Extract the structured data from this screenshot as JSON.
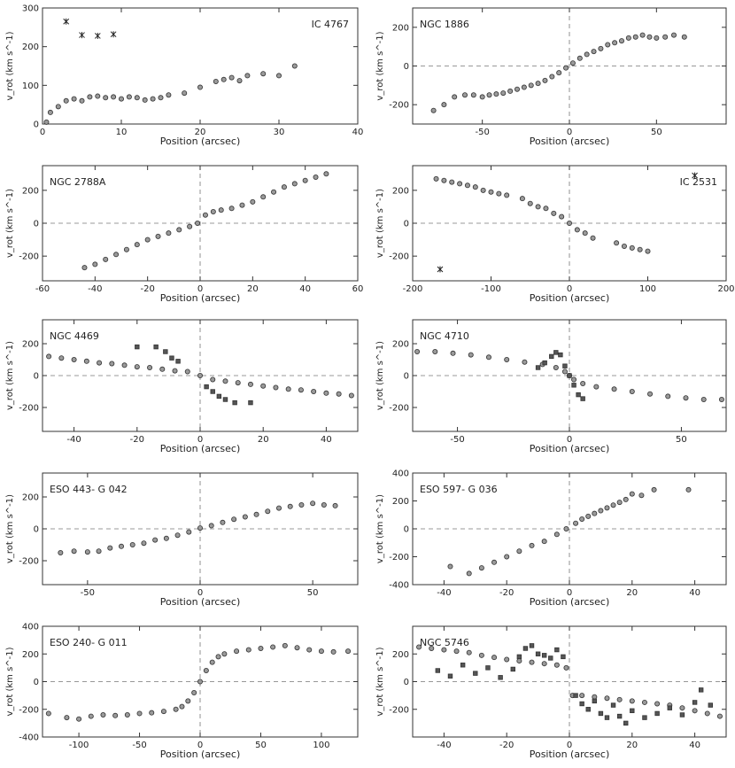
{
  "figure": {
    "colors": {
      "ink": "#222222",
      "frame": "#333333",
      "dash": "#777777",
      "marker_fill": "#9a9a9a"
    }
  },
  "chart_data": [
    {
      "type": "scatter",
      "galaxy": "IC 4767",
      "label_pos": "top-right",
      "xlabel": "Position (arcsec)",
      "ylabel": "v_rot (km s^-1)",
      "xlim": [
        0,
        40
      ],
      "ylim": [
        0,
        300
      ],
      "xticks": [
        0,
        10,
        20,
        30,
        40
      ],
      "yticks": [
        0,
        100,
        200,
        300
      ],
      "zero_lines": false,
      "series": [
        {
          "name": "rotation",
          "x": [
            0.5,
            1,
            2,
            3,
            4,
            5,
            6,
            7,
            8,
            9,
            10,
            11,
            12,
            13,
            14,
            15,
            16,
            18,
            20,
            22,
            23,
            24,
            25,
            26,
            28,
            30,
            32
          ],
          "y": [
            5,
            30,
            45,
            60,
            65,
            60,
            70,
            72,
            68,
            70,
            65,
            70,
            68,
            62,
            65,
            68,
            75,
            80,
            95,
            110,
            115,
            120,
            112,
            125,
            130,
            125,
            150
          ]
        },
        {
          "name": "outliers",
          "x": [
            3,
            5,
            7,
            9
          ],
          "y": [
            265,
            230,
            228,
            232
          ]
        }
      ]
    },
    {
      "type": "scatter",
      "galaxy": "NGC 1886",
      "label_pos": "top-left",
      "xlabel": "Position (arcsec)",
      "ylabel": "v_rot (km s^-1)",
      "xlim": [
        -90,
        90
      ],
      "ylim": [
        -300,
        300
      ],
      "xticks": [
        -50,
        0,
        50
      ],
      "yticks": [
        -200,
        0,
        200
      ],
      "zero_lines": true,
      "series": [
        {
          "name": "rotation",
          "x": [
            -78,
            -72,
            -66,
            -60,
            -55,
            -50,
            -46,
            -42,
            -38,
            -34,
            -30,
            -26,
            -22,
            -18,
            -14,
            -10,
            -6,
            -2,
            2,
            6,
            10,
            14,
            18,
            22,
            26,
            30,
            34,
            38,
            42,
            46,
            50,
            55,
            60,
            66
          ],
          "y": [
            -230,
            -200,
            -160,
            -150,
            -150,
            -160,
            -150,
            -145,
            -140,
            -130,
            -120,
            -110,
            -100,
            -90,
            -75,
            -55,
            -35,
            -10,
            15,
            40,
            60,
            75,
            90,
            110,
            120,
            130,
            145,
            150,
            160,
            150,
            145,
            150,
            160,
            150
          ]
        }
      ]
    },
    {
      "type": "scatter",
      "galaxy": "NGC 2788A",
      "label_pos": "top-left",
      "xlabel": "Position (arcsec)",
      "ylabel": "v_rot (km s^-1)",
      "xlim": [
        -60,
        60
      ],
      "ylim": [
        -350,
        350
      ],
      "xticks": [
        -60,
        -40,
        -20,
        0,
        20,
        40,
        60
      ],
      "yticks": [
        -200,
        0,
        200
      ],
      "zero_lines": true,
      "series": [
        {
          "name": "rotation",
          "x": [
            -44,
            -40,
            -36,
            -32,
            -28,
            -24,
            -20,
            -16,
            -12,
            -8,
            -4,
            -1,
            2,
            5,
            8,
            12,
            16,
            20,
            24,
            28,
            32,
            36,
            40,
            44,
            48
          ],
          "y": [
            -270,
            -250,
            -220,
            -190,
            -160,
            -130,
            -100,
            -80,
            -60,
            -40,
            -20,
            0,
            50,
            70,
            80,
            90,
            110,
            130,
            160,
            190,
            220,
            240,
            260,
            280,
            300
          ]
        }
      ]
    },
    {
      "type": "scatter",
      "galaxy": "IC 2531",
      "label_pos": "top-right",
      "xlabel": "Position (arcsec)",
      "ylabel": "v_rot (km s^-1)",
      "xlim": [
        -200,
        200
      ],
      "ylim": [
        -350,
        350
      ],
      "xticks": [
        -200,
        -100,
        0,
        100,
        200
      ],
      "yticks": [
        -200,
        0,
        200
      ],
      "zero_lines": true,
      "series": [
        {
          "name": "rotation",
          "x": [
            -170,
            -160,
            -150,
            -140,
            -130,
            -120,
            -110,
            -100,
            -90,
            -80,
            -60,
            -50,
            -40,
            -30,
            -20,
            -10,
            0,
            10,
            20,
            30,
            60,
            70,
            80,
            90,
            100
          ],
          "y": [
            270,
            260,
            250,
            240,
            230,
            220,
            200,
            190,
            180,
            170,
            150,
            120,
            100,
            90,
            60,
            40,
            0,
            -40,
            -60,
            -90,
            -120,
            -140,
            -150,
            -160,
            -170
          ]
        },
        {
          "name": "outliers",
          "x": [
            -165,
            160
          ],
          "y": [
            -280,
            290
          ]
        }
      ]
    },
    {
      "type": "scatter",
      "galaxy": "NGC 4469",
      "label_pos": "top-left",
      "xlabel": "Position (arcsec)",
      "ylabel": "v_rot (km s^-1)",
      "xlim": [
        -50,
        50
      ],
      "ylim": [
        -350,
        350
      ],
      "xticks": [
        -40,
        -20,
        0,
        20,
        40
      ],
      "yticks": [
        -200,
        0,
        200
      ],
      "zero_lines": true,
      "series": [
        {
          "name": "disk",
          "x": [
            -48,
            -44,
            -40,
            -36,
            -32,
            -28,
            -24,
            -20,
            -16,
            -12,
            -8,
            -4,
            0,
            4,
            8,
            12,
            16,
            20,
            24,
            28,
            32,
            36,
            40,
            44,
            48
          ],
          "y": [
            120,
            110,
            100,
            90,
            80,
            75,
            65,
            55,
            50,
            40,
            30,
            25,
            0,
            -25,
            -35,
            -45,
            -55,
            -65,
            -75,
            -85,
            -90,
            -100,
            -110,
            -115,
            -125
          ]
        },
        {
          "name": "nuclear",
          "x": [
            -20,
            -14,
            -11,
            -9,
            -7,
            2,
            4,
            6,
            8,
            11,
            16
          ],
          "y": [
            180,
            180,
            150,
            110,
            90,
            -70,
            -100,
            -130,
            -150,
            -170,
            -170
          ]
        }
      ]
    },
    {
      "type": "scatter",
      "galaxy": "NGC 4710",
      "label_pos": "top-left",
      "xlabel": "Position (arcsec)",
      "ylabel": "v_rot (km s^-1)",
      "xlim": [
        -70,
        70
      ],
      "ylim": [
        -350,
        350
      ],
      "xticks": [
        -50,
        0,
        50
      ],
      "yticks": [
        -200,
        0,
        200
      ],
      "zero_lines": true,
      "series": [
        {
          "name": "disk",
          "x": [
            -68,
            -60,
            -52,
            -44,
            -36,
            -28,
            -20,
            -12,
            -6,
            -2,
            0,
            2,
            6,
            12,
            20,
            28,
            36,
            44,
            52,
            60,
            68
          ],
          "y": [
            150,
            150,
            140,
            130,
            115,
            100,
            85,
            70,
            50,
            25,
            0,
            -25,
            -50,
            -70,
            -85,
            -100,
            -115,
            -130,
            -140,
            -150,
            -150
          ]
        },
        {
          "name": "inner",
          "x": [
            -14,
            -11,
            -8,
            -6,
            -4,
            -2,
            0,
            2,
            4,
            6
          ],
          "y": [
            50,
            80,
            120,
            145,
            130,
            60,
            0,
            -60,
            -120,
            -145
          ]
        }
      ]
    },
    {
      "type": "scatter",
      "galaxy": "ESO 443- G 042",
      "label_pos": "top-left",
      "xlabel": "Position (arcsec)",
      "ylabel": "v_rot (km s^-1)",
      "xlim": [
        -70,
        70
      ],
      "ylim": [
        -350,
        350
      ],
      "xticks": [
        -50,
        0,
        50
      ],
      "yticks": [
        -200,
        0,
        200
      ],
      "zero_lines": true,
      "series": [
        {
          "name": "rotation",
          "x": [
            -62,
            -56,
            -50,
            -45,
            -40,
            -35,
            -30,
            -25,
            -20,
            -15,
            -10,
            -5,
            0,
            5,
            10,
            15,
            20,
            25,
            30,
            35,
            40,
            45,
            50,
            55,
            60
          ],
          "y": [
            -150,
            -140,
            -145,
            -140,
            -120,
            -110,
            -100,
            -90,
            -70,
            -60,
            -40,
            -20,
            5,
            20,
            40,
            60,
            75,
            90,
            110,
            130,
            140,
            150,
            160,
            150,
            145
          ]
        }
      ]
    },
    {
      "type": "scatter",
      "galaxy": "ESO 597- G 036",
      "label_pos": "top-left",
      "xlabel": "Position (arcsec)",
      "ylabel": "v_rot (km s^-1)",
      "xlim": [
        -50,
        50
      ],
      "ylim": [
        -400,
        400
      ],
      "xticks": [
        -40,
        -20,
        0,
        20,
        40
      ],
      "yticks": [
        -400,
        -200,
        0,
        200,
        400
      ],
      "zero_lines": true,
      "series": [
        {
          "name": "rotation",
          "x": [
            -38,
            -32,
            -28,
            -24,
            -20,
            -16,
            -12,
            -8,
            -4,
            -1,
            2,
            4,
            6,
            8,
            10,
            12,
            14,
            16,
            18,
            20,
            23,
            27,
            38
          ],
          "y": [
            -270,
            -320,
            -280,
            -240,
            -200,
            -160,
            -120,
            -90,
            -40,
            0,
            40,
            70,
            90,
            110,
            130,
            150,
            170,
            190,
            210,
            250,
            240,
            280,
            280
          ]
        }
      ]
    },
    {
      "type": "scatter",
      "galaxy": "ESO 240- G 011",
      "label_pos": "top-left",
      "xlabel": "Position (arcsec)",
      "ylabel": "v_rot (km s^-1)",
      "xlim": [
        -130,
        130
      ],
      "ylim": [
        -400,
        400
      ],
      "xticks": [
        -100,
        -50,
        0,
        50,
        100
      ],
      "yticks": [
        -400,
        -200,
        0,
        200,
        400
      ],
      "zero_lines": true,
      "series": [
        {
          "name": "rotation",
          "x": [
            -125,
            -110,
            -100,
            -90,
            -80,
            -70,
            -60,
            -50,
            -40,
            -30,
            -20,
            -15,
            -10,
            -5,
            0,
            5,
            10,
            15,
            20,
            30,
            40,
            50,
            60,
            70,
            80,
            90,
            100,
            110,
            122
          ],
          "y": [
            -230,
            -260,
            -270,
            -250,
            -240,
            -245,
            -240,
            -230,
            -225,
            -215,
            -200,
            -180,
            -140,
            -80,
            0,
            80,
            140,
            180,
            200,
            220,
            230,
            240,
            250,
            260,
            245,
            230,
            220,
            215,
            220
          ]
        }
      ]
    },
    {
      "type": "scatter",
      "galaxy": "NGC 5746",
      "label_pos": "top-left",
      "xlabel": "Position (arcsec)",
      "ylabel": "v_rot (km s^-1)",
      "xlim": [
        -50,
        50
      ],
      "ylim": [
        -400,
        400
      ],
      "xticks": [
        -40,
        -20,
        0,
        20,
        40
      ],
      "yticks": [
        -200,
        0,
        200
      ],
      "zero_lines": true,
      "series": [
        {
          "name": "disk",
          "x": [
            -48,
            -44,
            -40,
            -36,
            -32,
            -28,
            -24,
            -20,
            -16,
            -12,
            -8,
            -4,
            -1,
            1,
            4,
            8,
            12,
            16,
            20,
            24,
            28,
            32,
            36,
            40,
            44,
            48
          ],
          "y": [
            250,
            240,
            230,
            220,
            210,
            190,
            175,
            160,
            150,
            140,
            130,
            120,
            100,
            -100,
            -100,
            -110,
            -120,
            -130,
            -140,
            -150,
            -160,
            -170,
            -190,
            -210,
            -230,
            -250
          ]
        },
        {
          "name": "gas",
          "x": [
            -42,
            -38,
            -34,
            -30,
            -26,
            -22,
            -18,
            -16,
            -14,
            -12,
            -10,
            -8,
            -6,
            -4,
            -2,
            2,
            4,
            6,
            8,
            10,
            12,
            14,
            16,
            18,
            20,
            24,
            28,
            32,
            36,
            40,
            42,
            45
          ],
          "y": [
            80,
            40,
            120,
            60,
            100,
            30,
            90,
            180,
            240,
            260,
            200,
            190,
            170,
            230,
            180,
            -100,
            -160,
            -200,
            -140,
            -230,
            -260,
            -170,
            -250,
            -300,
            -210,
            -260,
            -230,
            -190,
            -240,
            -150,
            -60,
            -170
          ]
        }
      ]
    }
  ]
}
